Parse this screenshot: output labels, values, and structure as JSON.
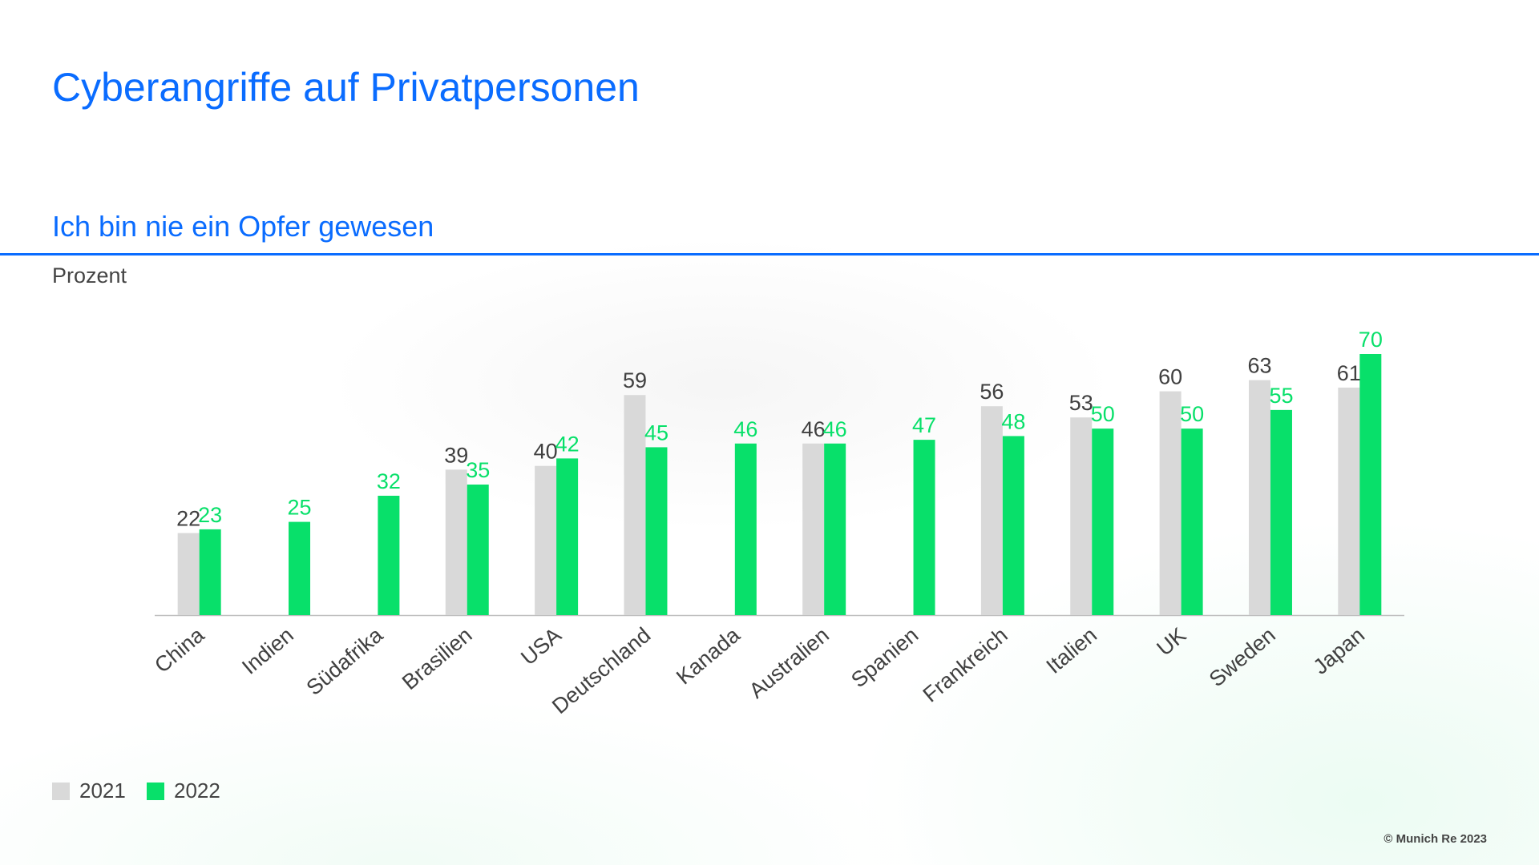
{
  "title": "Cyberangriffe auf Privatpersonen",
  "subtitle": "Ich bin nie ein Opfer gewesen",
  "copyright": "© Munich Re 2023",
  "colors": {
    "accent": "#0a6cff",
    "series_2021": "#d9d9d9",
    "series_2022": "#08e06a",
    "label_2021": "#404040"
  },
  "chart_data": {
    "type": "bar",
    "title": "Ich bin nie ein Opfer gewesen",
    "ylabel": "Prozent",
    "xlabel": "",
    "ylim": [
      0,
      70
    ],
    "grid": false,
    "legend_position": "bottom-left",
    "categories": [
      "China",
      "Indien",
      "Südafrika",
      "Brasilien",
      "USA",
      "Deutschland",
      "Kanada",
      "Australien",
      "Spanien",
      "Frankreich",
      "Italien",
      "UK",
      "Sweden",
      "Japan"
    ],
    "series": [
      {
        "name": "2021",
        "values": [
          22,
          null,
          null,
          39,
          40,
          59,
          null,
          46,
          null,
          56,
          53,
          60,
          63,
          61
        ]
      },
      {
        "name": "2022",
        "values": [
          23,
          25,
          32,
          35,
          42,
          45,
          46,
          46,
          47,
          48,
          50,
          50,
          55,
          70
        ]
      }
    ]
  }
}
